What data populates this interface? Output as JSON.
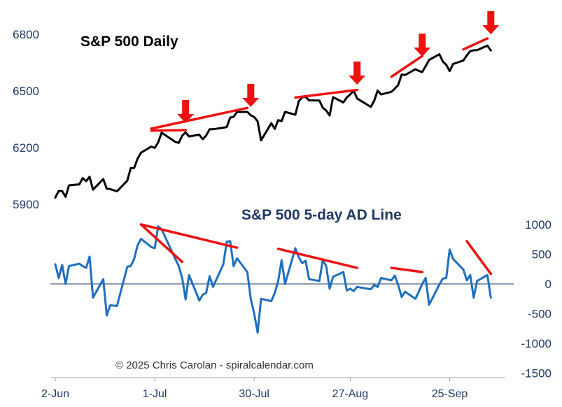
{
  "chart_data": [
    {
      "type": "line",
      "title": "S&P 500 Daily",
      "axis": "left",
      "ylim": [
        5900,
        6800
      ],
      "yticks": [
        5900,
        6200,
        6500,
        6800
      ],
      "color": "#000000",
      "x": [
        "2025-06-02",
        "2025-06-03",
        "2025-06-04",
        "2025-06-05",
        "2025-06-06",
        "2025-06-09",
        "2025-06-10",
        "2025-06-11",
        "2025-06-12",
        "2025-06-13",
        "2025-06-16",
        "2025-06-17",
        "2025-06-18",
        "2025-06-20",
        "2025-06-23",
        "2025-06-24",
        "2025-06-25",
        "2025-06-26",
        "2025-06-27",
        "2025-06-30",
        "2025-07-01",
        "2025-07-02",
        "2025-07-03",
        "2025-07-07",
        "2025-07-08",
        "2025-07-09",
        "2025-07-10",
        "2025-07-11",
        "2025-07-14",
        "2025-07-15",
        "2025-07-16",
        "2025-07-17",
        "2025-07-18",
        "2025-07-21",
        "2025-07-22",
        "2025-07-23",
        "2025-07-24",
        "2025-07-25",
        "2025-07-28",
        "2025-07-29",
        "2025-07-30",
        "2025-07-31",
        "2025-08-01",
        "2025-08-04",
        "2025-08-05",
        "2025-08-06",
        "2025-08-07",
        "2025-08-08",
        "2025-08-11",
        "2025-08-12",
        "2025-08-13",
        "2025-08-14",
        "2025-08-15",
        "2025-08-18",
        "2025-08-19",
        "2025-08-20",
        "2025-08-21",
        "2025-08-22",
        "2025-08-25",
        "2025-08-26",
        "2025-08-27",
        "2025-08-28",
        "2025-08-29",
        "2025-09-02",
        "2025-09-03",
        "2025-09-04",
        "2025-09-05",
        "2025-09-08",
        "2025-09-09",
        "2025-09-10",
        "2025-09-11",
        "2025-09-12",
        "2025-09-15",
        "2025-09-16",
        "2025-09-17",
        "2025-09-18",
        "2025-09-19",
        "2025-09-22",
        "2025-09-23",
        "2025-09-24",
        "2025-09-25",
        "2025-09-26",
        "2025-09-29",
        "2025-09-30",
        "2025-10-01",
        "2025-10-02",
        "2025-10-03",
        "2025-10-06",
        "2025-10-07"
      ],
      "values": [
        5935,
        5970,
        5970,
        5939,
        6000,
        6005,
        6038,
        6022,
        6045,
        5977,
        6033,
        5982,
        5980,
        5968,
        6025,
        6092,
        6092,
        6141,
        6173,
        6205,
        6198,
        6227,
        6279,
        6230,
        6225,
        6263,
        6280,
        6259,
        6268,
        6244,
        6264,
        6297,
        6297,
        6305,
        6309,
        6359,
        6363,
        6388,
        6389,
        6371,
        6362,
        6339,
        6238,
        6329,
        6299,
        6345,
        6340,
        6389,
        6374,
        6446,
        6466,
        6469,
        6450,
        6449,
        6411,
        6396,
        6370,
        6467,
        6439,
        6465,
        6481,
        6502,
        6460,
        6415,
        6448,
        6502,
        6481,
        6495,
        6512,
        6532,
        6587,
        6584,
        6615,
        6606,
        6600,
        6631,
        6664,
        6694,
        6656,
        6638,
        6605,
        6643,
        6661,
        6688,
        6711,
        6715,
        6716,
        6740,
        6714
      ],
      "trendlines": [
        {
          "from": [
            "2025-06-30",
            6300
          ],
          "to": [
            "2025-07-28",
            6410
          ]
        },
        {
          "from": [
            "2025-06-30",
            6290
          ],
          "to": [
            "2025-07-10",
            6292
          ]
        },
        {
          "from": [
            "2025-08-11",
            6465
          ],
          "to": [
            "2025-08-29",
            6505
          ]
        },
        {
          "from": [
            "2025-09-08",
            6575
          ],
          "to": [
            "2025-09-17",
            6685
          ]
        },
        {
          "from": [
            "2025-09-29",
            6720
          ],
          "to": [
            "2025-10-06",
            6778
          ]
        }
      ],
      "arrows": [
        "2025-07-10",
        "2025-07-29",
        "2025-08-29",
        "2025-09-17",
        "2025-10-07"
      ]
    },
    {
      "type": "line",
      "title": "S&P 500 5-day AD Line",
      "axis": "right",
      "ylim": [
        -1500,
        1000
      ],
      "yticks": [
        1000,
        500,
        0,
        -500,
        -1000,
        -1500
      ],
      "color": "#1f6fbf",
      "x": [
        "2025-06-02",
        "2025-06-03",
        "2025-06-04",
        "2025-06-05",
        "2025-06-06",
        "2025-06-09",
        "2025-06-10",
        "2025-06-11",
        "2025-06-12",
        "2025-06-13",
        "2025-06-16",
        "2025-06-17",
        "2025-06-18",
        "2025-06-20",
        "2025-06-23",
        "2025-06-24",
        "2025-06-25",
        "2025-06-26",
        "2025-06-27",
        "2025-06-30",
        "2025-07-01",
        "2025-07-02",
        "2025-07-03",
        "2025-07-07",
        "2025-07-08",
        "2025-07-09",
        "2025-07-10",
        "2025-07-11",
        "2025-07-14",
        "2025-07-15",
        "2025-07-16",
        "2025-07-17",
        "2025-07-18",
        "2025-07-21",
        "2025-07-22",
        "2025-07-23",
        "2025-07-24",
        "2025-07-25",
        "2025-07-28",
        "2025-07-29",
        "2025-07-30",
        "2025-07-31",
        "2025-08-01",
        "2025-08-04",
        "2025-08-05",
        "2025-08-06",
        "2025-08-07",
        "2025-08-08",
        "2025-08-11",
        "2025-08-12",
        "2025-08-13",
        "2025-08-14",
        "2025-08-15",
        "2025-08-18",
        "2025-08-19",
        "2025-08-20",
        "2025-08-21",
        "2025-08-22",
        "2025-08-25",
        "2025-08-26",
        "2025-08-27",
        "2025-08-28",
        "2025-08-29",
        "2025-09-02",
        "2025-09-03",
        "2025-09-04",
        "2025-09-05",
        "2025-09-08",
        "2025-09-09",
        "2025-09-10",
        "2025-09-11",
        "2025-09-12",
        "2025-09-15",
        "2025-09-16",
        "2025-09-17",
        "2025-09-18",
        "2025-09-19",
        "2025-09-22",
        "2025-09-23",
        "2025-09-24",
        "2025-09-25",
        "2025-09-26",
        "2025-09-29",
        "2025-09-30",
        "2025-10-01",
        "2025-10-02",
        "2025-10-03",
        "2025-10-06",
        "2025-10-07"
      ],
      "values": [
        330,
        100,
        320,
        0,
        300,
        340,
        300,
        270,
        460,
        -230,
        80,
        -530,
        -360,
        -370,
        290,
        300,
        420,
        650,
        760,
        620,
        600,
        970,
        920,
        420,
        300,
        100,
        -260,
        150,
        -280,
        -180,
        -150,
        130,
        -50,
        330,
        710,
        720,
        300,
        430,
        200,
        -250,
        -500,
        -820,
        -250,
        -290,
        -150,
        50,
        400,
        0,
        600,
        450,
        350,
        390,
        80,
        50,
        400,
        300,
        -80,
        120,
        200,
        -110,
        -80,
        -120,
        -50,
        -90,
        -20,
        -50,
        100,
        60,
        140,
        -20,
        -220,
        -130,
        -250,
        -130,
        0,
        100,
        -350,
        -10,
        90,
        100,
        580,
        420,
        240,
        60,
        150,
        -230,
        50,
        150,
        -230
      ],
      "trendlines": [
        {
          "from": [
            "2025-06-27",
            1000
          ],
          "to": [
            "2025-07-09",
            370
          ]
        },
        {
          "from": [
            "2025-06-27",
            1000
          ],
          "to": [
            "2025-07-25",
            610
          ]
        },
        {
          "from": [
            "2025-08-06",
            590
          ],
          "to": [
            "2025-08-29",
            270
          ]
        },
        {
          "from": [
            "2025-09-08",
            270
          ],
          "to": [
            "2025-09-17",
            200
          ]
        },
        {
          "from": [
            "2025-09-30",
            720
          ],
          "to": [
            "2025-10-07",
            170
          ]
        }
      ]
    }
  ],
  "x_ticks": [
    {
      "date": "2025-06-02",
      "label": "2-Jun"
    },
    {
      "date": "2025-07-01",
      "label": "1-Jul"
    },
    {
      "date": "2025-07-30",
      "label": "30-Jul"
    },
    {
      "date": "2025-08-27",
      "label": "27-Aug"
    },
    {
      "date": "2025-09-25",
      "label": "25-Sep"
    }
  ],
  "copyright": "© 2025 Chris Carolan - spiralcalendar.com",
  "colors": {
    "price": "#000000",
    "ad": "#1f6fbf",
    "trend": "#ee1111",
    "arrow": "#ee1111",
    "axis_text": "#1f3864",
    "axis_line": "#9aa4b5"
  }
}
